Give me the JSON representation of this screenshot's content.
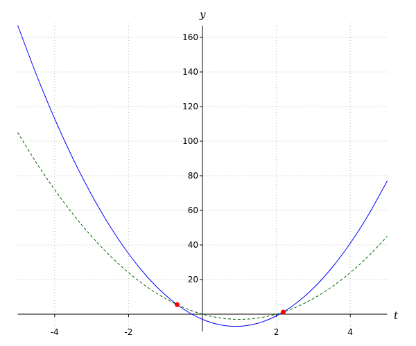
{
  "chart_data": {
    "type": "line",
    "xlabel": "t",
    "ylabel": "y",
    "x": [
      -5,
      -4.5,
      -4,
      -3.5,
      -3,
      -2.5,
      -2,
      -1.5,
      -1,
      -0.5,
      0,
      0.5,
      1,
      1.5,
      2,
      2.5,
      3,
      3.5,
      4,
      4.5,
      5
    ],
    "series": [
      {
        "color": "#0000ff",
        "dashed": false,
        "values": [
          167,
          138.75,
          113,
          89.75,
          69,
          50.75,
          35,
          21.75,
          11,
          2.75,
          -3,
          -6.25,
          -7,
          -5.25,
          -1,
          5.75,
          15,
          26.75,
          41,
          57.75,
          77
        ]
      },
      {
        "color": "#006400",
        "dashed": true,
        "values": [
          105,
          87.75,
          72,
          57.75,
          45,
          33.75,
          24,
          15.75,
          9,
          3.75,
          0,
          -2.25,
          -3,
          -2.25,
          0,
          3.75,
          9,
          15.75,
          24,
          33.75,
          45
        ]
      }
    ],
    "points": {
      "color": "#ff0000",
      "x": [
        -0.686,
        2.186
      ],
      "y": [
        5.53,
        1.22
      ]
    },
    "xlim": [
      -5,
      5
    ],
    "ylim": [
      -10,
      168
    ],
    "xticks": [
      -4,
      -2,
      2,
      4
    ],
    "yticks": [
      20,
      40,
      60,
      80,
      100,
      120,
      140,
      160
    ],
    "grid": true
  }
}
